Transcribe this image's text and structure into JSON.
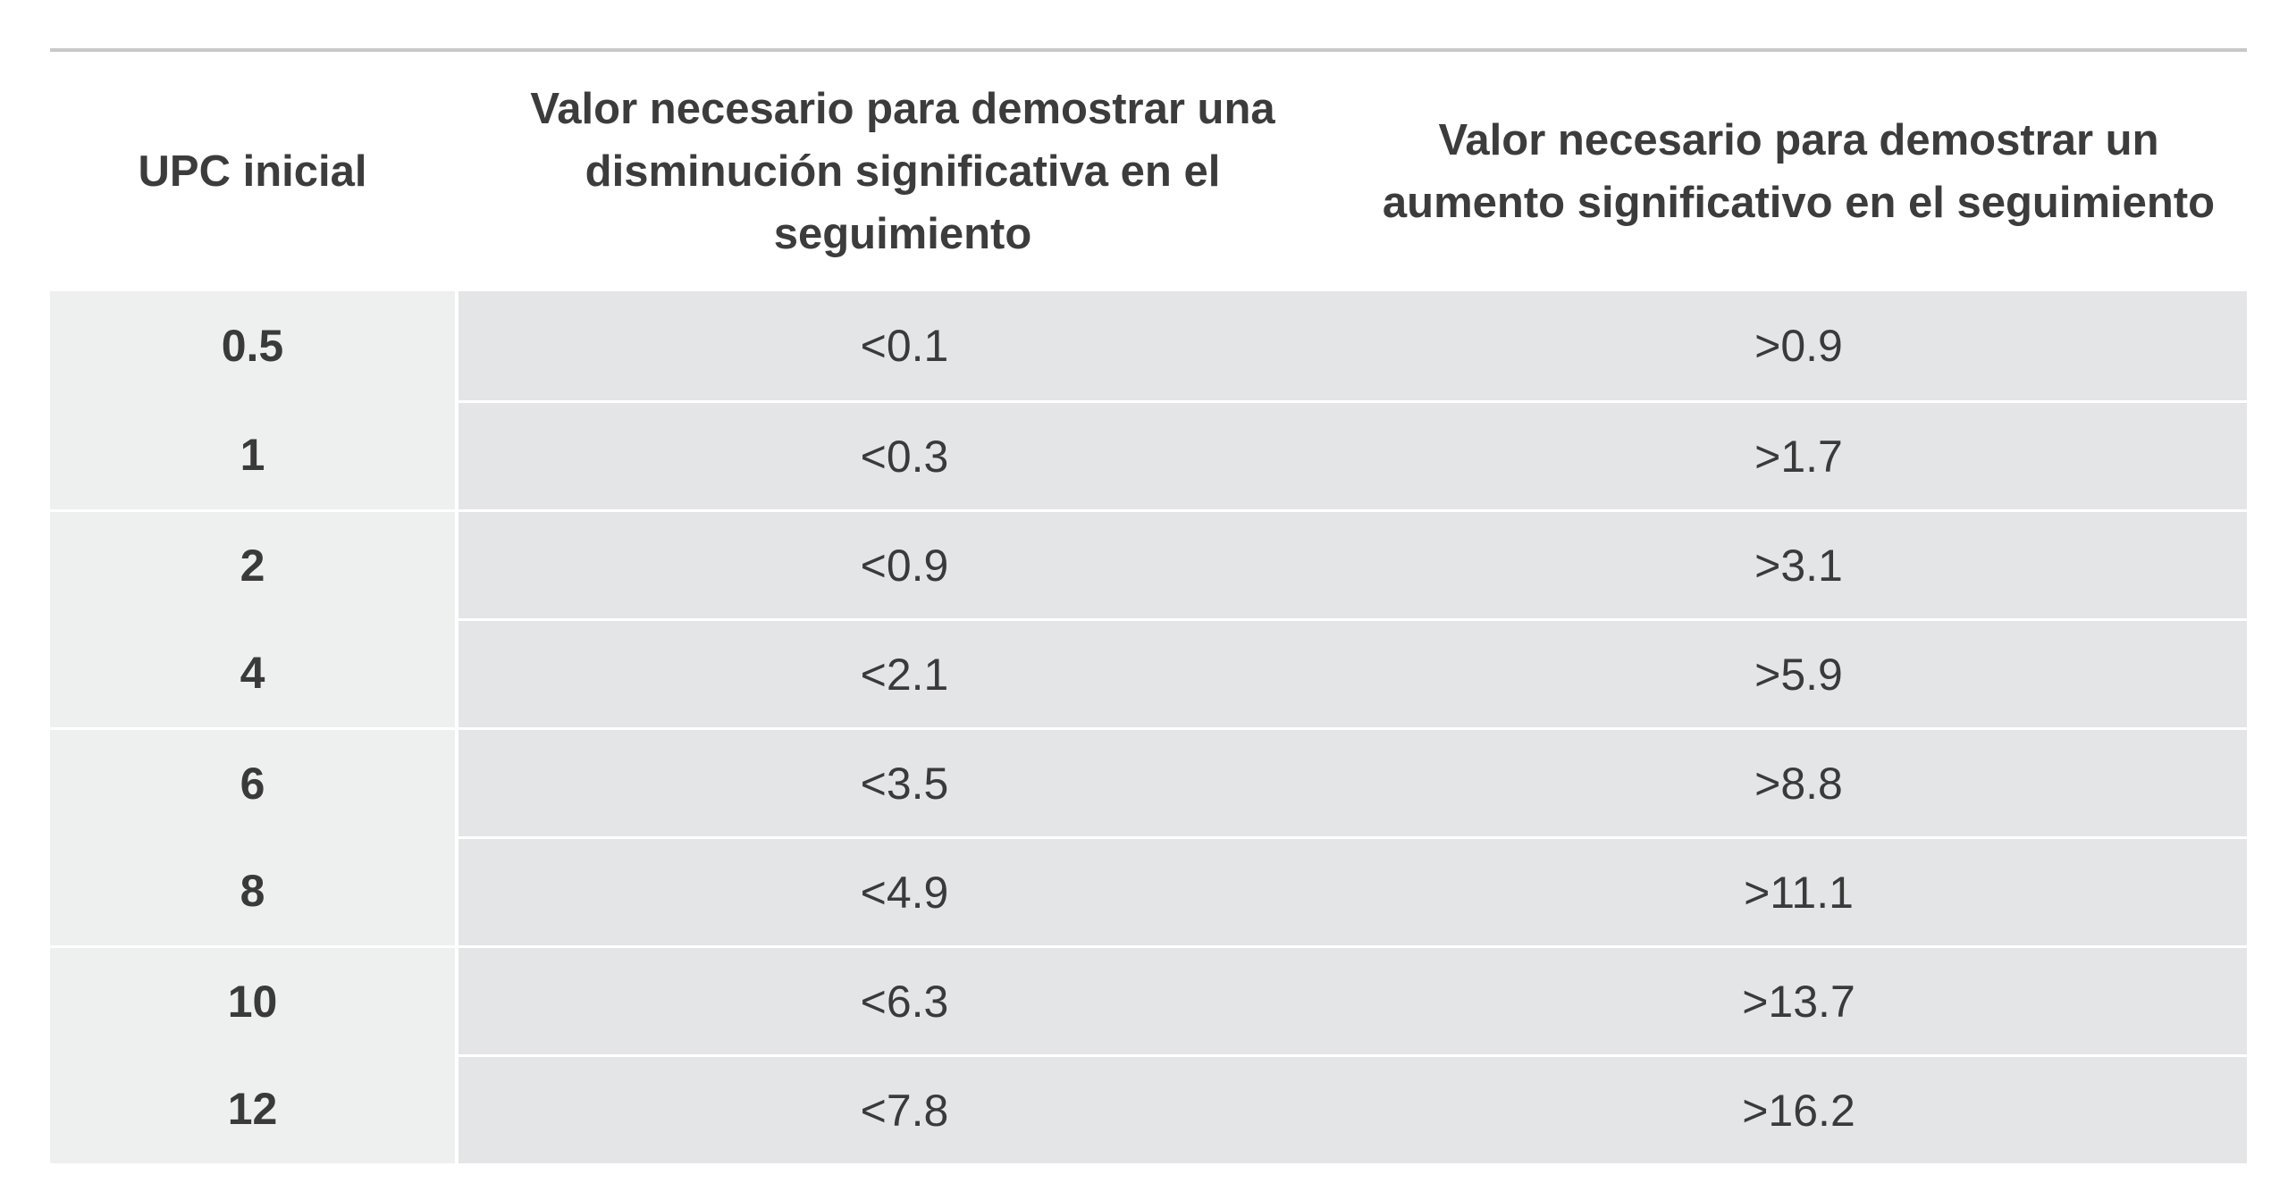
{
  "table": {
    "headers": [
      "UPC inicial",
      "Valor necesario para demostrar una disminución significativa en el seguimiento",
      "Valor necesario para demostrar un aumento significativo en el seguimiento"
    ],
    "rows": [
      {
        "upc": "0.5",
        "decrease": "<0.1",
        "increase": ">0.9"
      },
      {
        "upc": "1",
        "decrease": "<0.3",
        "increase": ">1.7"
      },
      {
        "upc": "2",
        "decrease": "<0.9",
        "increase": ">3.1"
      },
      {
        "upc": "4",
        "decrease": "<2.1",
        "increase": ">5.9"
      },
      {
        "upc": "6",
        "decrease": "<3.5",
        "increase": ">8.8"
      },
      {
        "upc": "8",
        "decrease": "<4.9",
        "increase": ">11.1"
      },
      {
        "upc": "10",
        "decrease": "<6.3",
        "increase": ">13.7"
      },
      {
        "upc": "12",
        "decrease": "<7.8",
        "increase": ">16.2"
      }
    ]
  }
}
